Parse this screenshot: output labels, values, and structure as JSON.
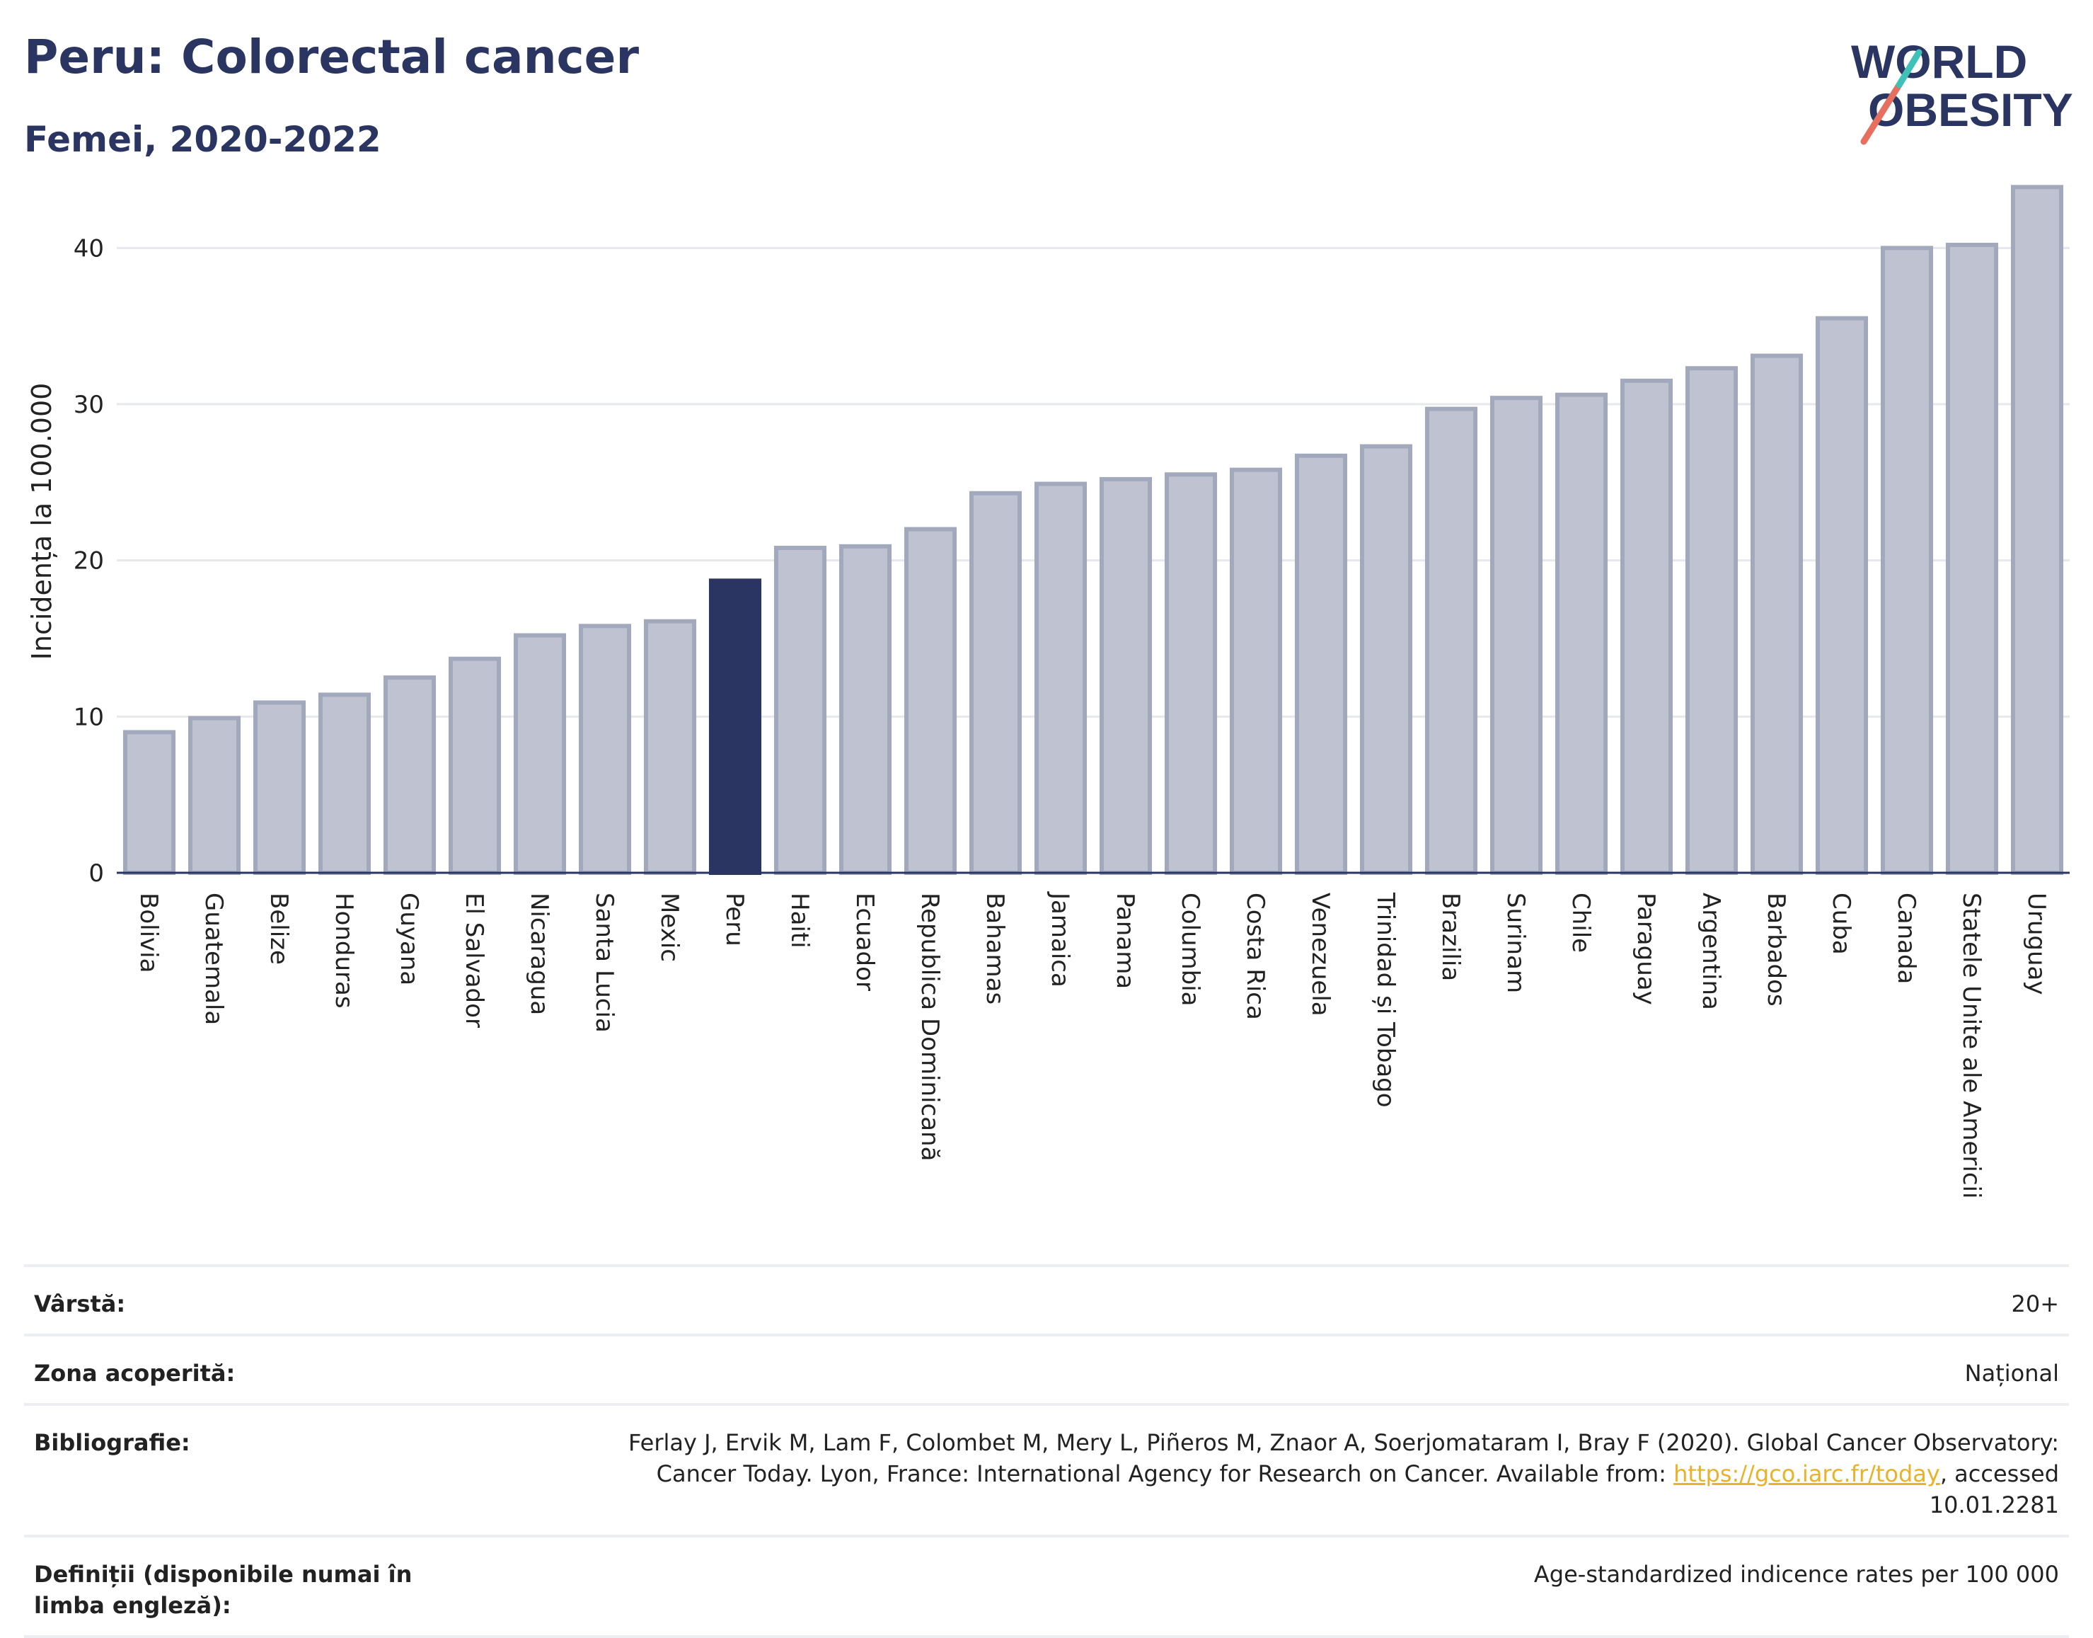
{
  "header": {
    "title": "Peru: Colorectal cancer",
    "subtitle": "Femei, 2020-2022",
    "logo_line1": "WORLD",
    "logo_line2": "OBESITY"
  },
  "colors": {
    "title": "#2b3562",
    "highlight_bar": "#2b3562",
    "bar_fill": "#bfc3d1",
    "bar_stroke": "#a3a9bd",
    "logo_red": "#e76f5f",
    "logo_teal": "#3ec1b8"
  },
  "chart_data": {
    "type": "bar",
    "title": "Peru: Colorectal cancer",
    "subtitle": "Femei, 2020-2022",
    "ylabel": "Incidența la 100.000",
    "xlabel": "",
    "ylim": [
      0,
      45
    ],
    "yticks": [
      0,
      10,
      20,
      30,
      40
    ],
    "grid": true,
    "highlight": "Peru",
    "categories": [
      "Bolivia",
      "Guatemala",
      "Belize",
      "Honduras",
      "Guyana",
      "El Salvador",
      "Nicaragua",
      "Santa Lucia",
      "Mexic",
      "Peru",
      "Haiti",
      "Ecuador",
      "Republica Dominicană",
      "Bahamas",
      "Jamaica",
      "Panama",
      "Columbia",
      "Costa Rica",
      "Venezuela",
      "Trinidad și Tobago",
      "Brazilia",
      "Surinam",
      "Chile",
      "Paraguay",
      "Argentina",
      "Barbados",
      "Cuba",
      "Canada",
      "Statele Unite ale Americii",
      "Uruguay"
    ],
    "values": [
      9.0,
      9.9,
      10.9,
      11.4,
      12.5,
      13.7,
      15.2,
      15.8,
      16.1,
      18.7,
      20.8,
      20.9,
      22.0,
      24.3,
      24.9,
      25.2,
      25.5,
      25.8,
      26.7,
      27.3,
      29.7,
      30.4,
      30.6,
      31.5,
      32.3,
      33.1,
      35.5,
      40.0,
      40.2,
      43.9
    ]
  },
  "meta": [
    {
      "key": "Vârstă:",
      "value": "20+"
    },
    {
      "key": "Zona acoperită:",
      "value": "Național"
    },
    {
      "key": "Bibliografie:",
      "value_pre": "Ferlay J, Ervik M, Lam F, Colombet M, Mery L, Piñeros M, Znaor A, Soerjomataram I, Bray F (2020). Global Cancer Observatory: Cancer Today. Lyon, France: International Agency for Research on Cancer. Available from: ",
      "link": "https://gco.iarc.fr/today",
      "value_post": ", accessed 10.01.2281"
    },
    {
      "key": "Definiții (disponibile numai în limba engleză):",
      "value": "Age-standardized indicence rates per 100 000"
    }
  ]
}
